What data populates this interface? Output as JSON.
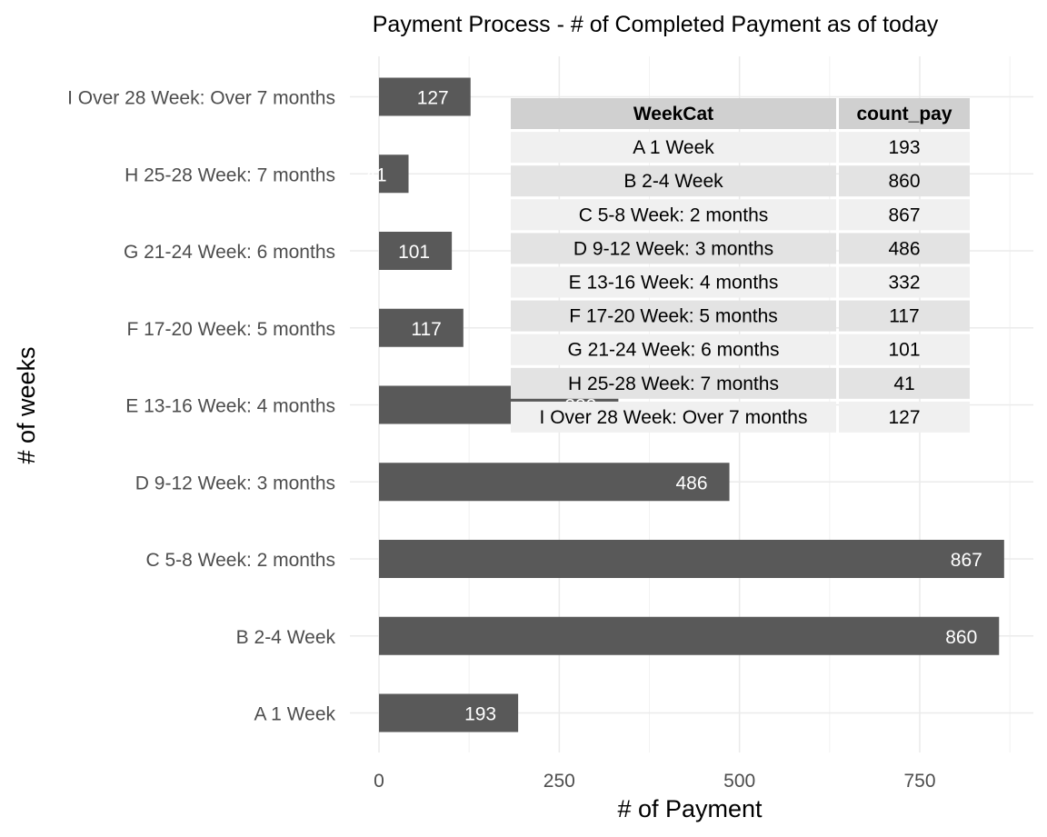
{
  "chart_data": {
    "type": "bar",
    "orientation": "horizontal",
    "title": "Payment Process - # of Completed Payment as of today",
    "xlabel": "# of Payment",
    "ylabel": "# of weeks",
    "xlim": [
      0,
      900
    ],
    "xticks": [
      0,
      250,
      500,
      750
    ],
    "grid": true,
    "categories": [
      "A 1 Week",
      "B 2-4 Week",
      "C 5-8 Week: 2 months",
      "D 9-12 Week: 3 months",
      "E 13-16 Week: 4 months",
      "F 17-20 Week: 5 months",
      "G 21-24 Week: 6 months",
      "H 25-28 Week: 7 months",
      "I Over 28 Week: Over 7 months"
    ],
    "values": [
      193,
      860,
      867,
      486,
      332,
      117,
      101,
      41,
      127
    ],
    "bar_color": "#595959",
    "table": {
      "columns": [
        "WeekCat",
        "count_pay"
      ],
      "rows": [
        [
          "A 1 Week",
          "193"
        ],
        [
          "B 2-4 Week",
          "860"
        ],
        [
          "C 5-8 Week: 2 months",
          "867"
        ],
        [
          "D 9-12 Week: 3 months",
          "486"
        ],
        [
          "E 13-16 Week: 4 months",
          "332"
        ],
        [
          "F 17-20 Week: 5 months",
          "117"
        ],
        [
          "G 21-24 Week: 6 months",
          "101"
        ],
        [
          "H 25-28 Week: 7 months",
          "41"
        ],
        [
          "I Over 28 Week: Over 7 months",
          "127"
        ]
      ],
      "header_color": "#d0d0d0",
      "row_colors": [
        "#f0f0f0",
        "#e3e3e3"
      ]
    }
  }
}
